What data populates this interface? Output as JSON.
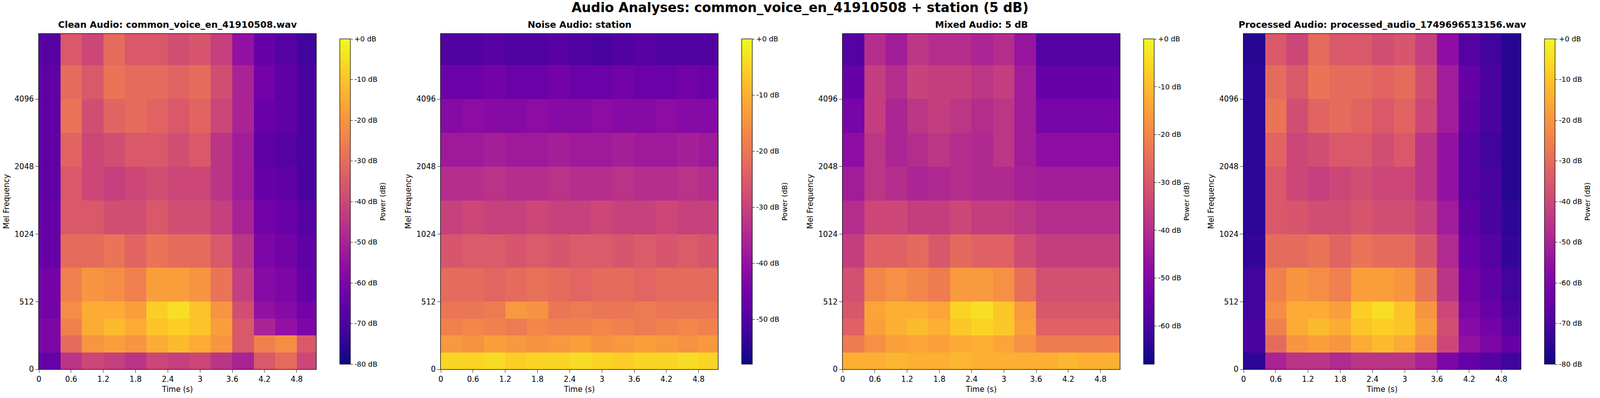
{
  "title": "Audio Analyses: common_voice_en_41910508 + station (5 dB)",
  "chart_data": [
    {
      "type": "heatmap",
      "title": "Clean Audio: common_voice_en_41910508.wav",
      "x_label": "Time (s)",
      "y_label": "Mel Frequency",
      "xlim": [
        0,
        5.16
      ],
      "xticks": [
        0,
        0.6,
        1.2,
        1.8,
        2.4,
        3,
        3.6,
        4.2,
        4.8
      ],
      "ylim": [
        0,
        8000
      ],
      "yticks": [
        0,
        512,
        1024,
        2048,
        4096
      ],
      "x_edges": [
        0,
        0.4,
        0.8,
        1.2,
        1.6,
        2.0,
        2.4,
        2.8,
        3.2,
        3.6,
        4.0,
        4.4,
        4.8,
        5.16
      ],
      "y_edges": [
        0,
        128,
        256,
        384,
        512,
        724,
        1024,
        1448,
        2048,
        2896,
        4096,
        5793,
        8000
      ],
      "cells": [
        [
          -65,
          -45,
          -40,
          -42,
          -45,
          -40,
          -42,
          -40,
          -45,
          -50,
          -35,
          -30,
          -40
        ],
        [
          -60,
          -30,
          -20,
          -18,
          -20,
          -15,
          -12,
          -15,
          -20,
          -35,
          -25,
          -22,
          -35
        ],
        [
          -60,
          -25,
          -15,
          -12,
          -15,
          -10,
          -8,
          -10,
          -18,
          -35,
          -50,
          -55,
          -60
        ],
        [
          -62,
          -22,
          -15,
          -15,
          -18,
          -8,
          -5,
          -10,
          -20,
          -38,
          -55,
          -58,
          -62
        ],
        [
          -62,
          -25,
          -20,
          -22,
          -25,
          -18,
          -18,
          -20,
          -28,
          -42,
          -58,
          -60,
          -65
        ],
        [
          -65,
          -30,
          -30,
          -28,
          -32,
          -28,
          -30,
          -30,
          -35,
          -45,
          -60,
          -62,
          -66
        ],
        [
          -65,
          -35,
          -35,
          -38,
          -38,
          -35,
          -38,
          -38,
          -42,
          -50,
          -62,
          -64,
          -68
        ],
        [
          -66,
          -35,
          -40,
          -42,
          -40,
          -38,
          -40,
          -40,
          -45,
          -52,
          -65,
          -66,
          -70
        ],
        [
          -66,
          -32,
          -40,
          -38,
          -35,
          -35,
          -38,
          -35,
          -45,
          -52,
          -66,
          -68,
          -70
        ],
        [
          -66,
          -28,
          -38,
          -32,
          -30,
          -32,
          -35,
          -32,
          -40,
          -50,
          -64,
          -66,
          -70
        ],
        [
          -66,
          -30,
          -35,
          -28,
          -30,
          -30,
          -32,
          -30,
          -38,
          -50,
          -62,
          -66,
          -70
        ],
        [
          -68,
          -35,
          -40,
          -30,
          -35,
          -35,
          -38,
          -36,
          -42,
          -55,
          -65,
          -68,
          -72
        ]
      ],
      "colorbar_label": "Power (dB)",
      "colorbar_range": [
        -80,
        0
      ],
      "colorbar_ticks": [
        {
          "value": 0,
          "label": "+0 dB"
        },
        {
          "value": -10,
          "label": "-10 dB"
        },
        {
          "value": -20,
          "label": "-20 dB"
        },
        {
          "value": -30,
          "label": "-30 dB"
        },
        {
          "value": -40,
          "label": "-40 dB"
        },
        {
          "value": -50,
          "label": "-50 dB"
        },
        {
          "value": -60,
          "label": "-60 dB"
        },
        {
          "value": -70,
          "label": "-70 dB"
        },
        {
          "value": -80,
          "label": "-80 dB"
        }
      ]
    },
    {
      "type": "heatmap",
      "title": "Noise Audio: station",
      "x_label": "Time (s)",
      "y_label": "Mel Frequency",
      "xlim": [
        0,
        5.16
      ],
      "xticks": [
        0,
        0.6,
        1.2,
        1.8,
        2.4,
        3,
        3.6,
        4.2,
        4.8
      ],
      "ylim": [
        0,
        8000
      ],
      "yticks": [
        0,
        512,
        1024,
        2048,
        4096
      ],
      "x_edges": [
        0,
        0.4,
        0.8,
        1.2,
        1.6,
        2.0,
        2.4,
        2.8,
        3.2,
        3.6,
        4.0,
        4.4,
        4.8,
        5.16
      ],
      "y_edges": [
        0,
        128,
        256,
        384,
        512,
        724,
        1024,
        1448,
        2048,
        2896,
        4096,
        5793,
        8000
      ],
      "cells": [
        [
          -5,
          -5,
          -4,
          -6,
          -5,
          -5,
          -4,
          -5,
          -6,
          -5,
          -5,
          -4,
          -5
        ],
        [
          -14,
          -15,
          -13,
          -14,
          -15,
          -14,
          -13,
          -15,
          -14,
          -13,
          -14,
          -15,
          -14
        ],
        [
          -18,
          -17,
          -18,
          -19,
          -17,
          -18,
          -18,
          -17,
          -18,
          -19,
          -18,
          -17,
          -18
        ],
        [
          -20,
          -20,
          -19,
          -14,
          -15,
          -20,
          -19,
          -20,
          -20,
          -19,
          -20,
          -20,
          -20
        ],
        [
          -22,
          -22,
          -23,
          -22,
          -21,
          -22,
          -23,
          -22,
          -22,
          -23,
          -22,
          -22,
          -22
        ],
        [
          -26,
          -25,
          -25,
          -26,
          -25,
          -26,
          -25,
          -25,
          -26,
          -25,
          -26,
          -25,
          -26
        ],
        [
          -30,
          -29,
          -30,
          -30,
          -29,
          -30,
          -30,
          -29,
          -30,
          -30,
          -29,
          -30,
          -30
        ],
        [
          -34,
          -34,
          -33,
          -34,
          -34,
          -33,
          -34,
          -34,
          -33,
          -34,
          -34,
          -33,
          -34
        ],
        [
          -38,
          -38,
          -37,
          -38,
          -38,
          -37,
          -38,
          -38,
          -37,
          -38,
          -38,
          -37,
          -38
        ],
        [
          -42,
          -41,
          -42,
          -42,
          -41,
          -42,
          -42,
          -41,
          -42,
          -42,
          -41,
          -42,
          -42
        ],
        [
          -46,
          -46,
          -45,
          -46,
          -46,
          -45,
          -46,
          -46,
          -45,
          -46,
          -46,
          -45,
          -46
        ],
        [
          -50,
          -50,
          -49,
          -50,
          -50,
          -49,
          -50,
          -51,
          -50,
          -49,
          -50,
          -50,
          -50
        ]
      ],
      "colorbar_label": "Power (dB)",
      "colorbar_range": [
        -58,
        0
      ],
      "colorbar_ticks": [
        {
          "value": 0,
          "label": "+0 dB"
        },
        {
          "value": -10,
          "label": "-10 dB"
        },
        {
          "value": -20,
          "label": "-20 dB"
        },
        {
          "value": -30,
          "label": "-30 dB"
        },
        {
          "value": -40,
          "label": "-40 dB"
        },
        {
          "value": -50,
          "label": "-50 dB"
        }
      ]
    },
    {
      "type": "heatmap",
      "title": "Mixed Audio: 5 dB",
      "x_label": "Time (s)",
      "y_label": "Mel Frequency",
      "xlim": [
        0,
        5.16
      ],
      "xticks": [
        0,
        0.6,
        1.2,
        1.8,
        2.4,
        3,
        3.6,
        4.2,
        4.8
      ],
      "ylim": [
        0,
        8000
      ],
      "yticks": [
        0,
        512,
        1024,
        2048,
        4096
      ],
      "x_edges": [
        0,
        0.4,
        0.8,
        1.2,
        1.6,
        2.0,
        2.4,
        2.8,
        3.2,
        3.6,
        4.0,
        4.4,
        4.8,
        5.16
      ],
      "y_edges": [
        0,
        128,
        256,
        384,
        512,
        724,
        1024,
        1448,
        2048,
        2896,
        4096,
        5793,
        8000
      ],
      "cells": [
        [
          -12,
          -12,
          -11,
          -12,
          -12,
          -11,
          -12,
          -12,
          -12,
          -12,
          -11,
          -12,
          -12
        ],
        [
          -22,
          -18,
          -15,
          -14,
          -15,
          -13,
          -12,
          -14,
          -18,
          -22,
          -22,
          -22,
          -22
        ],
        [
          -28,
          -15,
          -12,
          -10,
          -12,
          -8,
          -6,
          -8,
          -15,
          -28,
          -28,
          -28,
          -28
        ],
        [
          -30,
          -14,
          -12,
          -12,
          -14,
          -6,
          -4,
          -8,
          -16,
          -30,
          -30,
          -30,
          -30
        ],
        [
          -32,
          -20,
          -18,
          -20,
          -22,
          -16,
          -16,
          -18,
          -25,
          -32,
          -32,
          -32,
          -32
        ],
        [
          -36,
          -28,
          -28,
          -26,
          -30,
          -26,
          -28,
          -28,
          -33,
          -36,
          -36,
          -36,
          -36
        ],
        [
          -40,
          -34,
          -34,
          -36,
          -36,
          -34,
          -36,
          -36,
          -38,
          -40,
          -40,
          -40,
          -40
        ],
        [
          -44,
          -38,
          -40,
          -42,
          -41,
          -40,
          -41,
          -41,
          -43,
          -44,
          -44,
          -44,
          -44
        ],
        [
          -48,
          -38,
          -42,
          -40,
          -38,
          -40,
          -41,
          -38,
          -44,
          -48,
          -48,
          -48,
          -48
        ],
        [
          -52,
          -36,
          -42,
          -38,
          -36,
          -38,
          -40,
          -38,
          -44,
          -52,
          -52,
          -52,
          -52
        ],
        [
          -55,
          -36,
          -40,
          -35,
          -36,
          -36,
          -38,
          -36,
          -44,
          -55,
          -55,
          -55,
          -55
        ],
        [
          -58,
          -40,
          -44,
          -38,
          -40,
          -40,
          -42,
          -40,
          -46,
          -58,
          -58,
          -58,
          -58
        ]
      ],
      "colorbar_label": "Power (dB)",
      "colorbar_range": [
        -68,
        0
      ],
      "colorbar_ticks": [
        {
          "value": 0,
          "label": "+0 dB"
        },
        {
          "value": -10,
          "label": "-10 dB"
        },
        {
          "value": -20,
          "label": "-20 dB"
        },
        {
          "value": -30,
          "label": "-30 dB"
        },
        {
          "value": -40,
          "label": "-40 dB"
        },
        {
          "value": -50,
          "label": "-50 dB"
        },
        {
          "value": -60,
          "label": "-60 dB"
        }
      ]
    },
    {
      "type": "heatmap",
      "title": "Processed Audio: processed_audio_1749696513156.wav",
      "x_label": "Time (s)",
      "y_label": "Mel Frequency",
      "xlim": [
        0,
        5.16
      ],
      "xticks": [
        0,
        0.6,
        1.2,
        1.8,
        2.4,
        3,
        3.6,
        4.2,
        4.8
      ],
      "ylim": [
        0,
        8000
      ],
      "yticks": [
        0,
        512,
        1024,
        2048,
        4096
      ],
      "x_edges": [
        0,
        0.4,
        0.8,
        1.2,
        1.6,
        2.0,
        2.4,
        2.8,
        3.2,
        3.6,
        4.0,
        4.4,
        4.8,
        5.16
      ],
      "y_edges": [
        0,
        128,
        256,
        384,
        512,
        724,
        1024,
        1448,
        2048,
        2896,
        4096,
        5793,
        8000
      ],
      "cells": [
        [
          -75,
          -50,
          -45,
          -45,
          -48,
          -45,
          -45,
          -45,
          -50,
          -60,
          -65,
          -68,
          -72
        ],
        [
          -70,
          -30,
          -20,
          -18,
          -20,
          -15,
          -12,
          -15,
          -22,
          -40,
          -55,
          -60,
          -65
        ],
        [
          -70,
          -25,
          -15,
          -12,
          -15,
          -10,
          -8,
          -10,
          -18,
          -38,
          -58,
          -62,
          -68
        ],
        [
          -72,
          -22,
          -15,
          -15,
          -18,
          -8,
          -5,
          -10,
          -20,
          -40,
          -60,
          -64,
          -70
        ],
        [
          -72,
          -25,
          -20,
          -22,
          -25,
          -18,
          -18,
          -20,
          -28,
          -45,
          -62,
          -66,
          -72
        ],
        [
          -74,
          -30,
          -30,
          -28,
          -32,
          -28,
          -30,
          -30,
          -36,
          -48,
          -64,
          -68,
          -74
        ],
        [
          -75,
          -35,
          -36,
          -38,
          -38,
          -36,
          -38,
          -38,
          -42,
          -52,
          -66,
          -70,
          -75
        ],
        [
          -75,
          -35,
          -40,
          -42,
          -40,
          -38,
          -40,
          -40,
          -45,
          -55,
          -68,
          -70,
          -76
        ],
        [
          -75,
          -32,
          -40,
          -38,
          -35,
          -35,
          -38,
          -35,
          -45,
          -55,
          -68,
          -72,
          -76
        ],
        [
          -75,
          -28,
          -38,
          -32,
          -30,
          -32,
          -35,
          -32,
          -40,
          -52,
          -66,
          -70,
          -76
        ],
        [
          -75,
          -30,
          -35,
          -28,
          -30,
          -30,
          -32,
          -30,
          -38,
          -52,
          -65,
          -70,
          -76
        ],
        [
          -76,
          -35,
          -40,
          -30,
          -35,
          -35,
          -38,
          -36,
          -42,
          -56,
          -68,
          -72,
          -76
        ]
      ],
      "colorbar_label": "Power (dB)",
      "colorbar_range": [
        -80,
        0
      ],
      "colorbar_ticks": [
        {
          "value": 0,
          "label": "+0 dB"
        },
        {
          "value": -10,
          "label": "-10 dB"
        },
        {
          "value": -20,
          "label": "-20 dB"
        },
        {
          "value": -30,
          "label": "-30 dB"
        },
        {
          "value": -40,
          "label": "-40 dB"
        },
        {
          "value": -50,
          "label": "-50 dB"
        },
        {
          "value": -60,
          "label": "-60 dB"
        },
        {
          "value": -70,
          "label": "-70 dB"
        },
        {
          "value": -80,
          "label": "-80 dB"
        }
      ]
    }
  ]
}
